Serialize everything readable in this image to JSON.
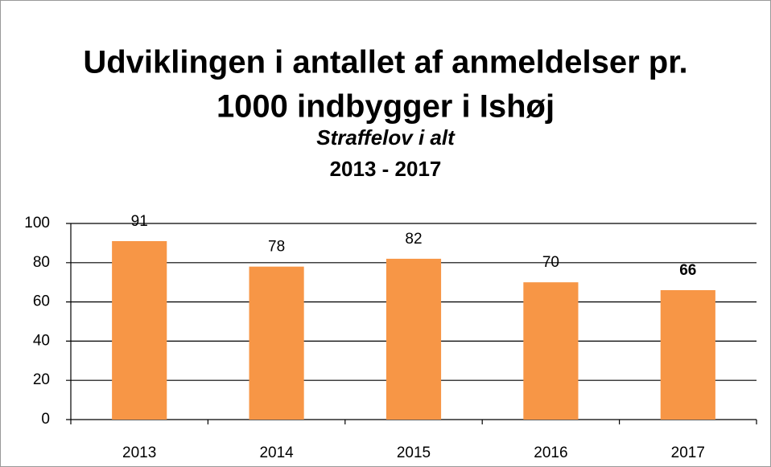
{
  "chart_data": {
    "type": "bar",
    "title": [
      "Udviklingen i antallet af anmeldelser pr.",
      "1000 indbygger i Ishøj"
    ],
    "subtitle": "Straffelov i alt",
    "period": "2013 - 2017",
    "categories": [
      "2013",
      "2014",
      "2015",
      "2016",
      "2017"
    ],
    "values": [
      91,
      78,
      82,
      70,
      66
    ],
    "value_label_weights": [
      "normal",
      "normal",
      "normal",
      "normal",
      "bold"
    ],
    "color": "#f79646",
    "ylim": [
      0,
      100
    ],
    "yticks": [
      0,
      20,
      40,
      60,
      80,
      100
    ],
    "grid": true
  }
}
